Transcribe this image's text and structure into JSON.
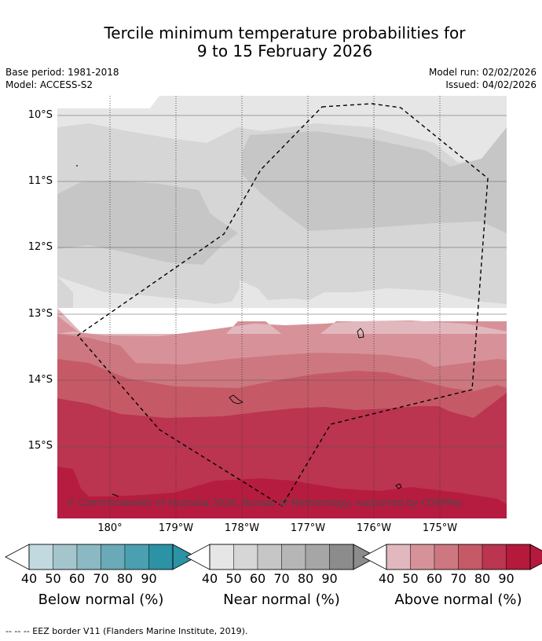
{
  "title_line1": "Tercile minimum temperature probabilities for",
  "title_line2": "9 to 15 February 2026",
  "meta": {
    "base_period": "Base period: 1981-2018",
    "model": "Model: ACCESS-S2",
    "model_run": "Model run: 02/02/2026",
    "issued": "Issued: 04/02/2026"
  },
  "lat_labels": [
    "10°S",
    "11°S",
    "12°S",
    "13°S",
    "14°S",
    "15°S"
  ],
  "lon_labels": [
    "180°",
    "179°W",
    "178°W",
    "177°W",
    "176°W",
    "175°W"
  ],
  "copyright": "© Commonwealth of Australia 2026, Bureau of Meteorology, supported by COSPPac",
  "colorbars": [
    {
      "name": "below",
      "caption": "Below normal (%)",
      "ticks": [
        "40",
        "50",
        "60",
        "70",
        "80",
        "90"
      ],
      "colors": [
        "#c1d9df",
        "#a4c5cc",
        "#8ab8c3",
        "#6aa9b7",
        "#4aa0b0",
        "#2c92a6"
      ]
    },
    {
      "name": "near",
      "caption": "Near normal (%)",
      "ticks": [
        "40",
        "50",
        "60",
        "70",
        "80",
        "90"
      ],
      "colors": [
        "#e6e6e6",
        "#d6d6d6",
        "#c6c6c6",
        "#b6b6b6",
        "#a6a6a6",
        "#8c8c8c"
      ]
    },
    {
      "name": "above",
      "caption": "Above normal (%)",
      "ticks": [
        "40",
        "50",
        "60",
        "70",
        "80",
        "90"
      ],
      "colors": [
        "#e1b8be",
        "#d79299",
        "#cd7780",
        "#c55a66",
        "#bb3450",
        "#b5193c"
      ]
    }
  ],
  "footer": "-- -- -- EEZ border V11 (Flanders Marine Institute, 2019)."
}
